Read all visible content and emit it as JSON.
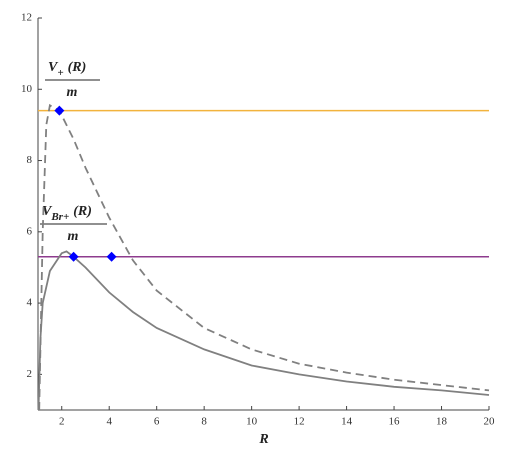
{
  "chart_data": {
    "type": "line",
    "x_label": "R",
    "xlim": [
      1,
      20
    ],
    "xticks": [
      2,
      4,
      6,
      8,
      10,
      12,
      14,
      16,
      18,
      20
    ],
    "ylim": [
      1,
      12
    ],
    "yticks": [
      2,
      4,
      6,
      8,
      10,
      12
    ],
    "series": [
      {
        "color": "#808080",
        "dashed": true,
        "x": [
          1.05,
          1.2,
          1.35,
          1.5,
          1.9,
          2.5,
          3,
          4,
          5,
          6,
          8,
          10,
          12,
          14,
          16,
          18,
          20
        ],
        "values": [
          1,
          6,
          9,
          9.55,
          9.4,
          8.6,
          7.8,
          6.4,
          5.2,
          4.35,
          3.3,
          2.7,
          2.3,
          2.05,
          1.85,
          1.7,
          1.55
        ]
      },
      {
        "color": "#808080",
        "dashed": false,
        "x": [
          1.02,
          1.1,
          1.2,
          1.5,
          2,
          2.2,
          2.5,
          3,
          4,
          5,
          6,
          8,
          10,
          12,
          14,
          16,
          18,
          20
        ],
        "values": [
          1,
          3,
          4,
          4.9,
          5.4,
          5.45,
          5.3,
          5.0,
          4.3,
          3.75,
          3.3,
          2.7,
          2.25,
          2.0,
          1.8,
          1.65,
          1.55,
          1.42
        ]
      }
    ],
    "hlines": [
      {
        "value": 9.4,
        "color": "#f2b33d"
      },
      {
        "value": 5.3,
        "color": "#8e3b8e"
      }
    ],
    "points": {
      "color": "#0000ff",
      "x": [
        1.9,
        2.5,
        4.1
      ],
      "y": [
        9.4,
        5.3,
        5.3
      ]
    },
    "annotations": [
      {
        "main": "V",
        "sub": "+",
        "arg": "(R)",
        "denominator": "m"
      },
      {
        "main": "V",
        "sub": "Br+",
        "arg": "(R)",
        "denominator": "m"
      }
    ]
  }
}
